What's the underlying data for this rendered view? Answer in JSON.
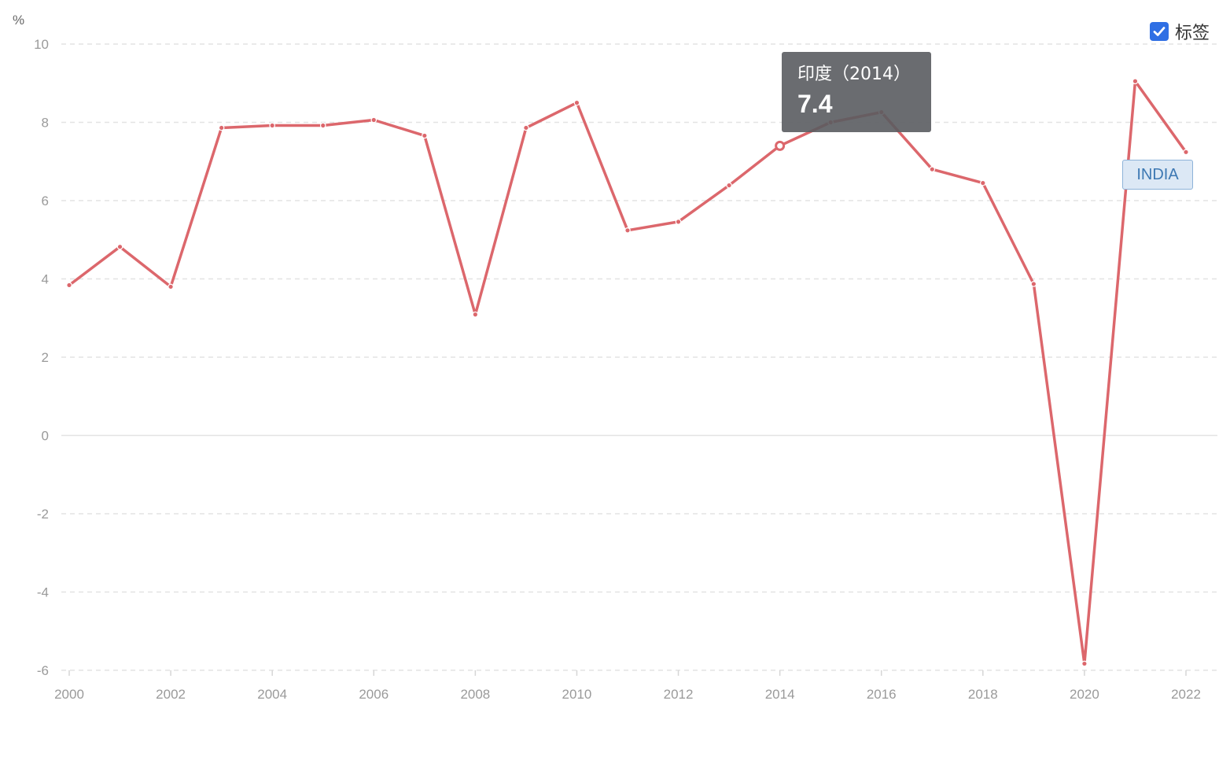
{
  "legend": {
    "label": "标签",
    "checked": true
  },
  "tooltip": {
    "title": "印度（2014）",
    "value": "7.4"
  },
  "series_tag": "INDIA",
  "colors": {
    "line": "#dc676c",
    "grid": "#e3e3e3",
    "tooltip_bg": "#5a5c60",
    "checkbox": "#2f6fe4"
  },
  "chart_data": {
    "type": "line",
    "ylabel": "%",
    "ylim": [
      -6,
      10
    ],
    "yticks": [
      "10",
      "8",
      "6",
      "4",
      "2",
      "0",
      "-2",
      "-4",
      "-6"
    ],
    "xticks": [
      "2000",
      "2002",
      "2004",
      "2006",
      "2008",
      "2010",
      "2012",
      "2014",
      "2016",
      "2018",
      "2020",
      "2022"
    ],
    "grid": true,
    "series": [
      {
        "name": "INDIA",
        "x": [
          2000,
          2001,
          2002,
          2003,
          2004,
          2005,
          2006,
          2007,
          2008,
          2009,
          2010,
          2011,
          2012,
          2013,
          2014,
          2015,
          2016,
          2017,
          2018,
          2019,
          2020,
          2021,
          2022
        ],
        "values": [
          3.84,
          4.82,
          3.8,
          7.86,
          7.92,
          7.92,
          8.06,
          7.66,
          3.09,
          7.86,
          8.5,
          5.24,
          5.46,
          6.39,
          7.4,
          8.0,
          8.26,
          6.8,
          6.45,
          3.87,
          -5.83,
          9.05,
          7.24
        ]
      }
    ]
  }
}
